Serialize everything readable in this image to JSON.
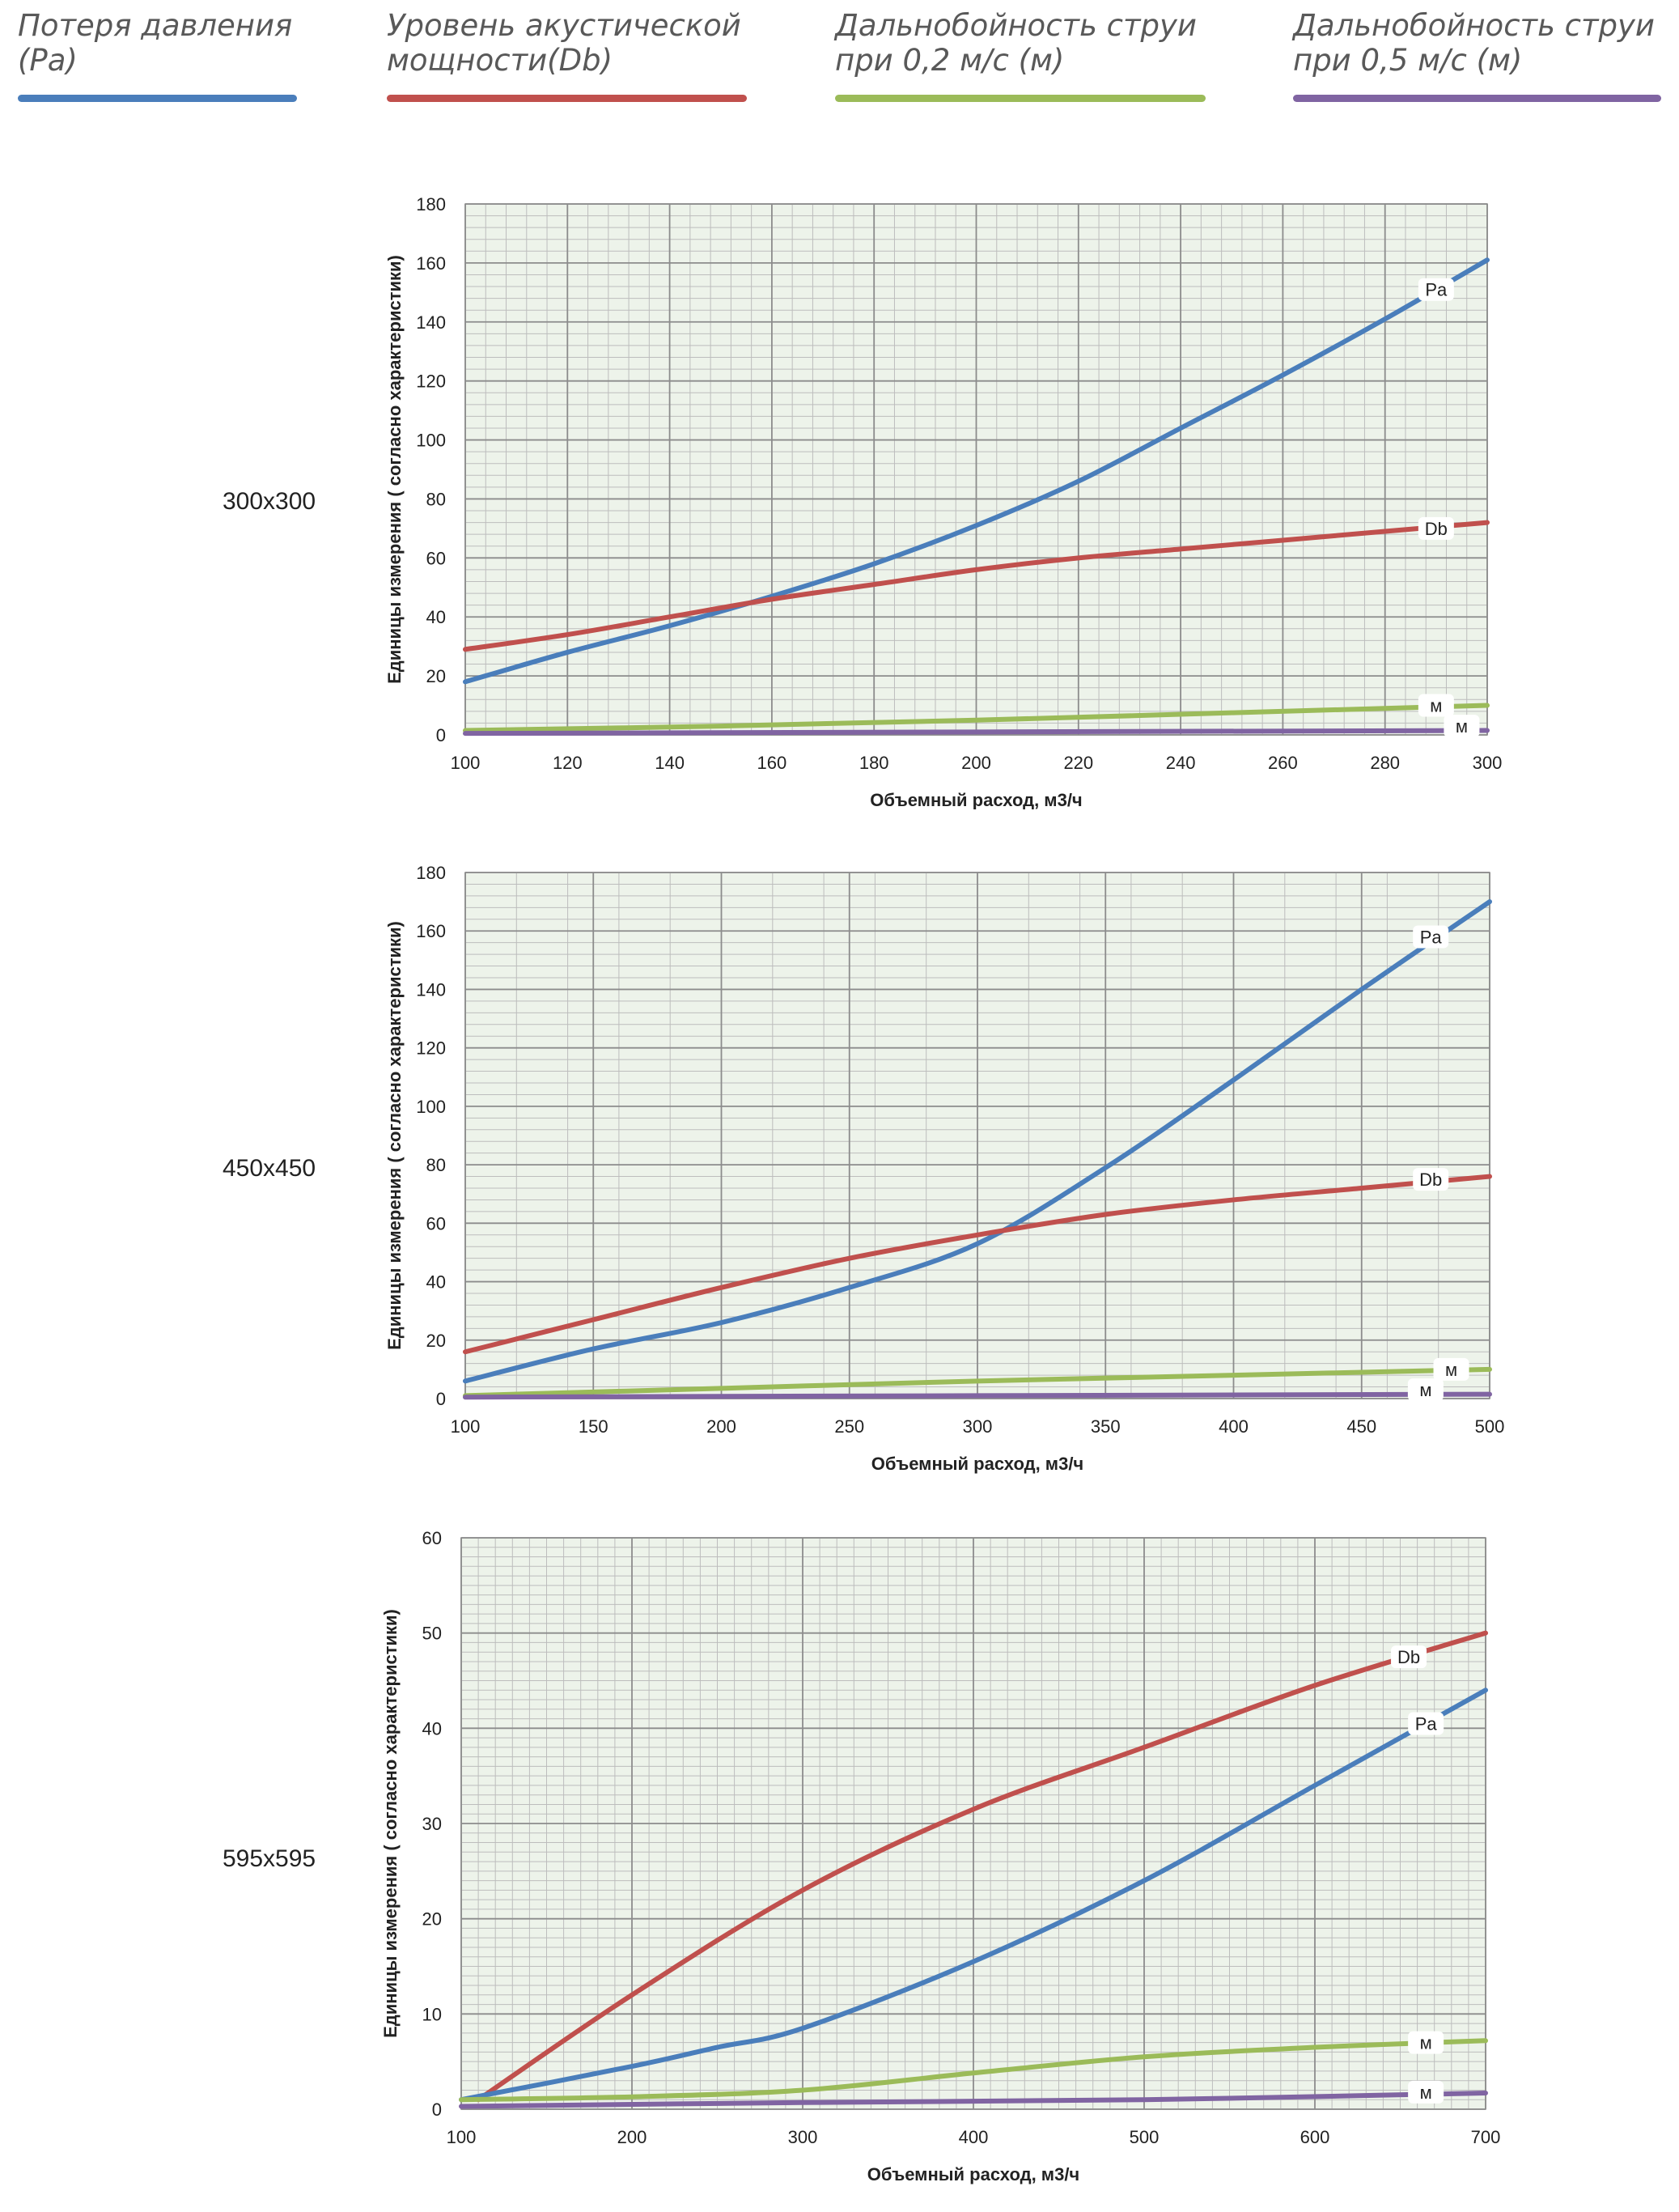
{
  "legend": [
    {
      "text": "Потеря давления\n(Pa)",
      "color": "#4a7ebb"
    },
    {
      "text": "Уровень акустической\nмощности(Db)",
      "color": "#c0504d"
    },
    {
      "text": "Дальнобойность струи\nпри 0,2 м/с (м)",
      "color": "#9bbb59"
    },
    {
      "text": "Дальнобойность струи\nпри 0,5 м/с (м)",
      "color": "#8064a2"
    }
  ],
  "chart_data": [
    {
      "type": "line",
      "size_label": "300x300",
      "xlabel": "Объемный расход, м3/ч",
      "ylabel": "Единицы измерения ( согласно характеристики)",
      "xlim": [
        100,
        300
      ],
      "ylim": [
        0,
        180
      ],
      "xticks": [
        100,
        120,
        140,
        160,
        180,
        200,
        220,
        240,
        260,
        280,
        300
      ],
      "yticks": [
        0,
        20,
        40,
        60,
        80,
        100,
        120,
        140,
        160,
        180
      ],
      "grid": true,
      "series": [
        {
          "name": "Pa",
          "color": "#4a7ebb",
          "label_at": [
            290,
            151
          ],
          "x": [
            100,
            120,
            140,
            160,
            180,
            200,
            220,
            240,
            260,
            280,
            300
          ],
          "y": [
            18,
            28,
            37,
            47,
            58,
            71,
            86,
            104,
            122,
            141,
            161
          ]
        },
        {
          "name": "Db",
          "color": "#c0504d",
          "label_at": [
            290,
            70
          ],
          "x": [
            100,
            120,
            140,
            160,
            180,
            200,
            220,
            240,
            260,
            280,
            300
          ],
          "y": [
            29,
            34,
            40,
            46,
            51,
            56,
            60,
            63,
            66,
            69,
            72
          ]
        },
        {
          "name": "м",
          "color": "#9bbb59",
          "label_at": [
            290,
            10
          ],
          "x": [
            100,
            150,
            200,
            250,
            300
          ],
          "y": [
            1.5,
            3,
            5,
            7.5,
            10
          ]
        },
        {
          "name": "м",
          "color": "#8064a2",
          "label_at": [
            295,
            3
          ],
          "x": [
            100,
            200,
            300
          ],
          "y": [
            0.5,
            1,
            1.5
          ]
        }
      ]
    },
    {
      "type": "line",
      "size_label": "450x450",
      "xlabel": "Объемный расход, м3/ч",
      "ylabel": "Единицы измерения ( согласно характеристики)",
      "xlim": [
        100,
        500
      ],
      "ylim": [
        0,
        180
      ],
      "xticks": [
        100,
        150,
        200,
        250,
        300,
        350,
        400,
        450,
        500
      ],
      "yticks": [
        0,
        20,
        40,
        60,
        80,
        100,
        120,
        140,
        160,
        180
      ],
      "grid": true,
      "series": [
        {
          "name": "Pa",
          "color": "#4a7ebb",
          "label_at": [
            477,
            158
          ],
          "x": [
            100,
            150,
            200,
            250,
            300,
            350,
            400,
            450,
            500
          ],
          "y": [
            6,
            17,
            26,
            38,
            53,
            79,
            109,
            140,
            170
          ]
        },
        {
          "name": "Db",
          "color": "#c0504d",
          "label_at": [
            477,
            75
          ],
          "x": [
            100,
            150,
            200,
            250,
            300,
            350,
            400,
            450,
            500
          ],
          "y": [
            16,
            27,
            38,
            48,
            56,
            63,
            68,
            72,
            76
          ]
        },
        {
          "name": "м",
          "color": "#9bbb59",
          "label_at": [
            485,
            10
          ],
          "x": [
            100,
            200,
            300,
            400,
            500
          ],
          "y": [
            1,
            3.5,
            6,
            8,
            10
          ]
        },
        {
          "name": "м",
          "color": "#8064a2",
          "label_at": [
            475,
            3
          ],
          "x": [
            100,
            300,
            500
          ],
          "y": [
            0.5,
            1,
            1.5
          ]
        }
      ]
    },
    {
      "type": "line",
      "size_label": "595x595",
      "xlabel": "Объемный расход, м3/ч",
      "ylabel": "Единицы измерения ( согласно характеристики)",
      "xlim": [
        100,
        700
      ],
      "ylim": [
        0,
        60
      ],
      "xticks": [
        100,
        200,
        300,
        400,
        500,
        600,
        700
      ],
      "yticks": [
        0,
        10,
        20,
        30,
        40,
        50,
        60
      ],
      "grid": true,
      "series": [
        {
          "name": "Db",
          "color": "#c0504d",
          "label_at": [
            655,
            47.5
          ],
          "x": [
            110,
            200,
            300,
            400,
            500,
            600,
            700
          ],
          "y": [
            1,
            12,
            23,
            31.5,
            38,
            44.5,
            50
          ]
        },
        {
          "name": "Pa",
          "color": "#4a7ebb",
          "label_at": [
            665,
            40.5
          ],
          "x": [
            100,
            200,
            250,
            300,
            400,
            500,
            600,
            700
          ],
          "y": [
            1,
            4.5,
            6.5,
            8.5,
            15.5,
            24,
            34,
            44
          ]
        },
        {
          "name": "м",
          "color": "#9bbb59",
          "label_at": [
            665,
            7
          ],
          "x": [
            100,
            200,
            300,
            400,
            500,
            600,
            700
          ],
          "y": [
            1,
            1.3,
            2,
            3.8,
            5.5,
            6.5,
            7.2
          ]
        },
        {
          "name": "м",
          "color": "#8064a2",
          "label_at": [
            665,
            1.8
          ],
          "x": [
            100,
            300,
            500,
            700
          ],
          "y": [
            0.3,
            0.7,
            1,
            1.7
          ]
        }
      ]
    }
  ]
}
